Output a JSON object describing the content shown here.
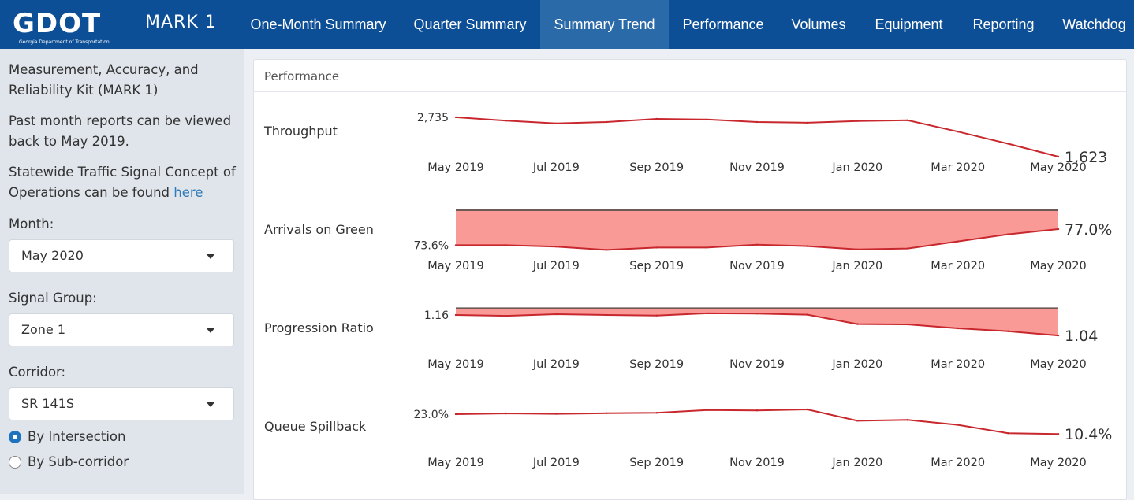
{
  "nav": {
    "logo_text": "GDOT",
    "logo_sub": "Georgia Department of Transportation",
    "brand": "MARK 1",
    "items": [
      {
        "label": "One-Month Summary",
        "active": false
      },
      {
        "label": "Quarter Summary",
        "active": false
      },
      {
        "label": "Summary Trend",
        "active": true
      },
      {
        "label": "Performance",
        "active": false
      },
      {
        "label": "Volumes",
        "active": false
      },
      {
        "label": "Equipment",
        "active": false
      },
      {
        "label": "Reporting",
        "active": false
      },
      {
        "label": "Watchdog",
        "active": false
      }
    ]
  },
  "sidebar": {
    "intro": "Measurement, Accuracy, and Reliability Kit (MARK 1)",
    "past_reports": "Past month reports can be viewed back to May 2019.",
    "concept_text": "Statewide Traffic Signal Concept of Operations can be found",
    "concept_link": "here",
    "month_label": "Month:",
    "month_value": "May 2020",
    "signal_group_label": "Signal Group:",
    "signal_group_value": "Zone 1",
    "corridor_label": "Corridor:",
    "corridor_value": "SR 141S",
    "radio_options": [
      {
        "label": "By Intersection",
        "checked": true
      },
      {
        "label": "By Sub-corridor",
        "checked": false
      }
    ]
  },
  "panel": {
    "title": "Performance"
  },
  "colors": {
    "navbar": "#0d4f96",
    "nav_active": "#2b6aa8",
    "line": "#c8282d",
    "fill": "#f99a97",
    "goal_line": "#6b5a57",
    "link": "#2f7ab8"
  },
  "chart_data": [
    {
      "type": "line",
      "name": "Throughput",
      "x": [
        "2019-05",
        "2019-06",
        "2019-07",
        "2019-08",
        "2019-09",
        "2019-10",
        "2019-11",
        "2019-12",
        "2020-01",
        "2020-02",
        "2020-03",
        "2020-04",
        "2020-05"
      ],
      "xticks": [
        "May 2019",
        "Jul 2019",
        "Sep 2019",
        "Nov 2019",
        "Jan 2020",
        "Mar 2020",
        "May 2020"
      ],
      "values": [
        2735,
        2640,
        2560,
        2600,
        2690,
        2670,
        2600,
        2580,
        2630,
        2650,
        2330,
        1990,
        1623
      ],
      "ylim": [
        1800,
        2800
      ],
      "first_label": "2,735",
      "last_label": "1,623",
      "fill": false
    },
    {
      "type": "area",
      "name": "Arrivals on Green",
      "x": [
        "2019-05",
        "2019-06",
        "2019-07",
        "2019-08",
        "2019-09",
        "2019-10",
        "2019-11",
        "2019-12",
        "2020-01",
        "2020-02",
        "2020-03",
        "2020-04",
        "2020-05"
      ],
      "xticks": [
        "May 2019",
        "Jul 2019",
        "Sep 2019",
        "Nov 2019",
        "Jan 2020",
        "Mar 2020",
        "May 2020"
      ],
      "values": [
        73.6,
        73.6,
        73.3,
        72.6,
        73.1,
        73.1,
        73.7,
        73.4,
        72.7,
        72.9,
        74.4,
        75.9,
        77.0
      ],
      "goal": 81.0,
      "ylim": [
        72.0,
        82.0
      ],
      "first_label": "73.6%",
      "last_label": "77.0%",
      "fill": true
    },
    {
      "type": "area",
      "name": "Progression Ratio",
      "x": [
        "2019-05",
        "2019-06",
        "2019-07",
        "2019-08",
        "2019-09",
        "2019-10",
        "2019-11",
        "2019-12",
        "2020-01",
        "2020-02",
        "2020-03",
        "2020-04",
        "2020-05"
      ],
      "xticks": [
        "May 2019",
        "Jul 2019",
        "Sep 2019",
        "Nov 2019",
        "Jan 2020",
        "Mar 2020",
        "May 2020"
      ],
      "values": [
        1.16,
        1.155,
        1.165,
        1.16,
        1.157,
        1.17,
        1.168,
        1.162,
        1.107,
        1.105,
        1.082,
        1.065,
        1.04
      ],
      "goal": 1.2,
      "ylim": [
        0.99,
        1.22
      ],
      "first_label": "1.16",
      "last_label": "1.04",
      "fill": true
    },
    {
      "type": "line",
      "name": "Queue Spillback",
      "x": [
        "2019-05",
        "2019-06",
        "2019-07",
        "2019-08",
        "2019-09",
        "2019-10",
        "2019-11",
        "2019-12",
        "2020-01",
        "2020-02",
        "2020-03",
        "2020-04",
        "2020-05"
      ],
      "xticks": [
        "May 2019",
        "Jul 2019",
        "Sep 2019",
        "Nov 2019",
        "Jan 2020",
        "Mar 2020",
        "May 2020"
      ],
      "values": [
        23.0,
        23.5,
        23.2,
        23.6,
        23.9,
        25.6,
        25.4,
        26.0,
        18.8,
        19.4,
        16.2,
        10.9,
        10.4
      ],
      "ylim": [
        5.0,
        30.0
      ],
      "first_label": "23.0%",
      "last_label": "10.4%",
      "fill": false
    }
  ]
}
